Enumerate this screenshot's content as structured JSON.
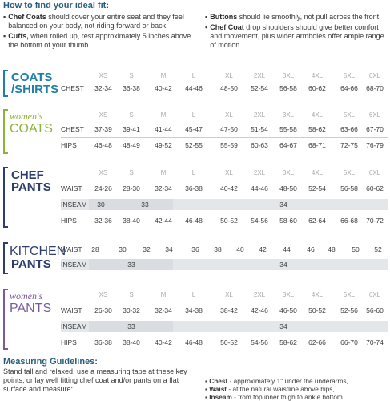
{
  "header": {
    "title": "How to find your ideal fit:",
    "tips_left": [
      {
        "bold": "Chef Coats",
        "text": " should cover your entire seat and they feel balanced on your body, not riding forward or back."
      },
      {
        "bold": "Cuffs,",
        "text": " when rolled up, rest approximately 5 inches above the bottom of your thumb."
      }
    ],
    "tips_right": [
      {
        "bold": "Buttons",
        "text": " should lie smoothly, not pull across the front."
      },
      {
        "bold": "Chef Coat",
        "text": " drop shoulders should give better comfort and movement, plus wider armholes offer ample range of motion."
      }
    ]
  },
  "sizes": [
    "XS",
    "S",
    "M",
    "L",
    "XL",
    "2XL",
    "3XL",
    "4XL",
    "5XL",
    "6XL"
  ],
  "coats_shirts": {
    "label_line1": "COATS",
    "label_line2": "/SHIRTS",
    "color": "#1f7fa7",
    "chest_label": "CHEST",
    "chest": [
      "32-34",
      "36-38",
      "40-42",
      "44-46",
      "48-50",
      "52-54",
      "56-58",
      "60-62",
      "64-66",
      "68-70"
    ]
  },
  "womens_coats": {
    "label_line1": "women's",
    "label_line2": "COATS",
    "color": "#8fb339",
    "chest_label": "CHEST",
    "chest": [
      "37-39",
      "39-41",
      "41-44",
      "45-47",
      "47-50",
      "51-54",
      "55-58",
      "58-62",
      "63-66",
      "67-70"
    ],
    "hips_label": "HIPS",
    "hips": [
      "46-48",
      "48-49",
      "49-52",
      "52-55",
      "55-59",
      "60-63",
      "64-67",
      "68-71",
      "72-75",
      "76-79"
    ]
  },
  "chef_pants": {
    "label_line1": "CHEF",
    "label_line2": "PANTS",
    "color": "#2d3e6e",
    "waist_label": "WAIST",
    "waist": [
      "24-26",
      "28-30",
      "32-34",
      "36-38",
      "40-42",
      "44-46",
      "48-50",
      "52-54",
      "56-58",
      "60-62"
    ],
    "inseam_label": "INSEAM",
    "inseam": [
      "30",
      "33",
      "34"
    ],
    "hips_label": "HIPS",
    "hips": [
      "32-36",
      "38-40",
      "42-44",
      "46-48",
      "50-52",
      "54-56",
      "58-60",
      "62-64",
      "66-68",
      "70-72"
    ]
  },
  "kitchen_pants": {
    "label_line1": "KITCHEN",
    "label_line2": "PANTS",
    "color": "#2d3e6e",
    "waist_label": "WAIST",
    "waist": [
      "28",
      "30",
      "32",
      "34",
      "36",
      "38",
      "40",
      "42",
      "44",
      "46",
      "48",
      "50",
      "52"
    ],
    "inseam_label": "INSEAM",
    "inseam": [
      "33",
      "34"
    ]
  },
  "womens_pants": {
    "label_line1": "women's",
    "label_line2": "PANTS",
    "color": "#7a5a9c",
    "waist_label": "WAIST",
    "waist": [
      "26-30",
      "30-32",
      "32-34",
      "34-38",
      "38-42",
      "42-46",
      "46-50",
      "50-52",
      "52-56",
      "56-60"
    ],
    "inseam_label": "INSEAM",
    "inseam": [
      "33",
      "34"
    ],
    "hips_label": "HIPS",
    "hips": [
      "36-38",
      "38-40",
      "40-42",
      "46-48",
      "50-52",
      "54-56",
      "58-62",
      "62-66",
      "66-70",
      "70-74"
    ]
  },
  "guidelines": {
    "title": "Measuring Guidelines:",
    "text": "Stand tall and relaxed, use a measuring tape at these key points, or lay well fitting chef coat and/or pants on a flat surface and measure:",
    "items": [
      {
        "bold": "Chest",
        "text": " - approximately 1\" under the underarms,"
      },
      {
        "bold": "Waist",
        "text": " - at the natural waistline above hips,"
      },
      {
        "bold": "Inseam",
        "text": " - from top inner thigh to ankle bottom."
      }
    ]
  }
}
